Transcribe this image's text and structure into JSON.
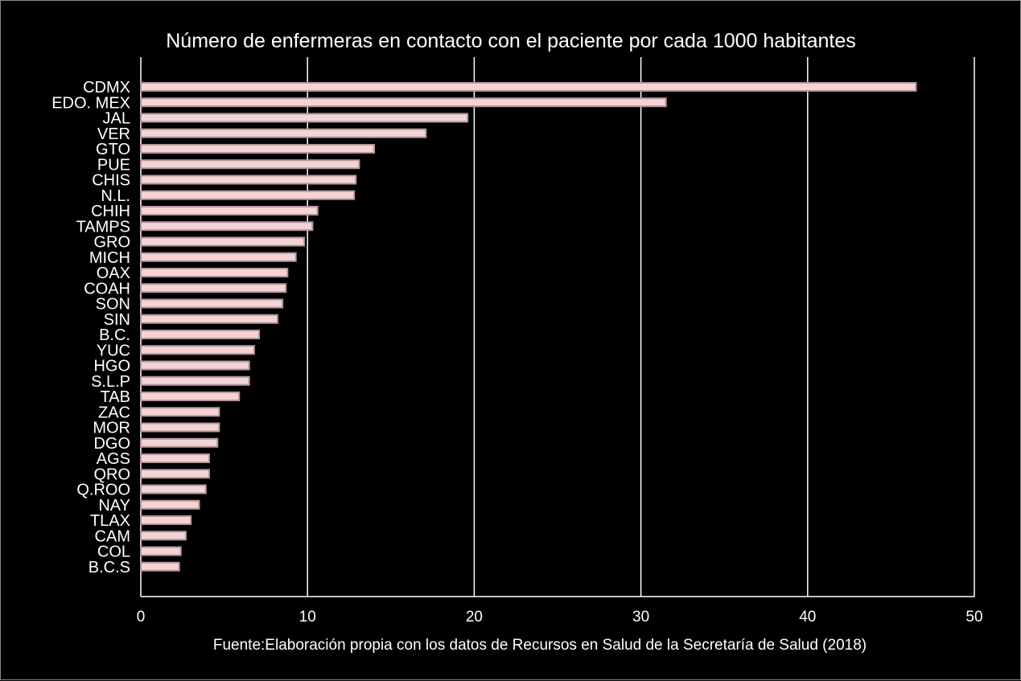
{
  "chart_data": {
    "type": "bar",
    "orientation": "horizontal",
    "title": "Número de enfermeras en contacto con el paciente por cada 1000 habitantes",
    "source_note": "Fuente:Elaboración propia con los datos de Recursos en Salud de la Secretaría de Salud (2018)",
    "xlabel": "",
    "ylabel": "",
    "xlim": [
      0,
      50
    ],
    "xticks": [
      0,
      10,
      20,
      30,
      40,
      50
    ],
    "grid": true,
    "legend": "none",
    "categories": [
      "CDMX",
      "EDO. MEX",
      "JAL",
      "VER",
      "GTO",
      "PUE",
      "CHIS",
      "N.L.",
      "CHIH",
      "TAMPS",
      "GRO",
      "MICH",
      "OAX",
      "COAH",
      "SON",
      "SIN",
      "B.C.",
      "YUC",
      "HGO",
      "S.L.P",
      "TAB",
      "ZAC",
      "MOR",
      "DGO",
      "AGS",
      "QRO",
      "Q.ROO",
      "NAY",
      "TLAX",
      "CAM",
      "COL",
      "B.C.S"
    ],
    "values": [
      46.5,
      31.5,
      19.6,
      17.1,
      14.0,
      13.1,
      12.9,
      12.8,
      10.6,
      10.3,
      9.8,
      9.3,
      8.8,
      8.7,
      8.5,
      8.2,
      7.1,
      6.8,
      6.5,
      6.5,
      5.9,
      4.7,
      4.7,
      4.6,
      4.1,
      4.1,
      3.9,
      3.5,
      3.0,
      2.7,
      2.4,
      2.3
    ],
    "colors": {
      "background": "#000000",
      "bar_fill": "#f2d4d4",
      "bar_stroke": "#b39797",
      "grid": "#ffffff",
      "text": "#ffffff"
    }
  }
}
